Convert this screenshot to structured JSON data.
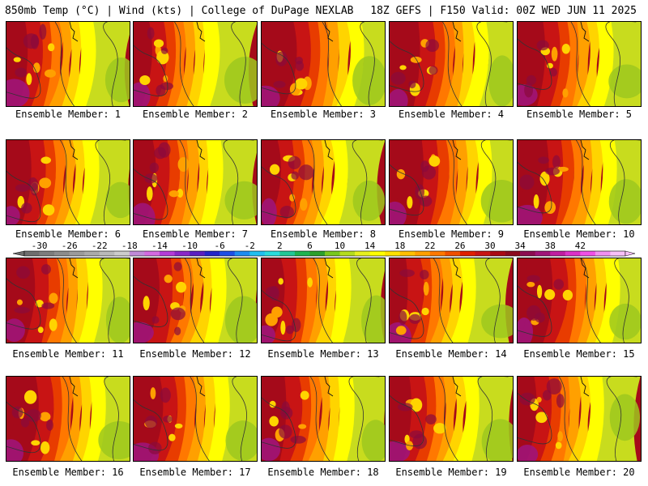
{
  "header": {
    "left": "850mb Temp (°C) | Wind (kts) | College of DuPage NEXLAB",
    "right": "18Z GEFS | F150 Valid: 00Z WED JUN 11 2025"
  },
  "members": [
    "Ensemble Member: 1",
    "Ensemble Member: 2",
    "Ensemble Member: 3",
    "Ensemble Member: 4",
    "Ensemble Member: 5",
    "Ensemble Member: 6",
    "Ensemble Member: 7",
    "Ensemble Member: 8",
    "Ensemble Member: 9",
    "Ensemble Member: 10",
    "Ensemble Member: 11",
    "Ensemble Member: 12",
    "Ensemble Member: 13",
    "Ensemble Member: 14",
    "Ensemble Member: 15",
    "Ensemble Member: 16",
    "Ensemble Member: 17",
    "Ensemble Member: 18",
    "Ensemble Member: 19",
    "Ensemble Member: 20"
  ],
  "colorbar": {
    "labels": [
      "-30",
      "-26",
      "-22",
      "-18",
      "-14",
      "-10",
      "-6",
      "-2",
      "2",
      "6",
      "10",
      "14",
      "18",
      "22",
      "26",
      "30",
      "34",
      "38",
      "42"
    ],
    "colors": [
      "#6e6e6e",
      "#7d7d7d",
      "#8c8c8c",
      "#9b9b9b",
      "#aaaaaa",
      "#b9b9b9",
      "#cccccc",
      "#c08ad8",
      "#d46ae0",
      "#b43cd8",
      "#8a28c8",
      "#5a1ec0",
      "#2424c8",
      "#1e4ee6",
      "#1e8cf0",
      "#20c0f0",
      "#28dcdc",
      "#22c896",
      "#1eb450",
      "#2ca02c",
      "#78c81e",
      "#b4dc1e",
      "#e6f01e",
      "#ffff00",
      "#ffe000",
      "#ffc000",
      "#ffa000",
      "#ff7800",
      "#f05000",
      "#e02000",
      "#c81414",
      "#aa0a14",
      "#8c0a1e",
      "#8c0c50",
      "#a01478",
      "#c01ea0",
      "#dc32c8",
      "#f050e6",
      "#f090f0",
      "#f8c0f8"
    ]
  },
  "field_colors": [
    "#9ec81e",
    "#c8dc1e",
    "#ffff00",
    "#ffd400",
    "#ffa000",
    "#ff7800",
    "#e83c00",
    "#c81414",
    "#a50a1a",
    "#8a0a3c",
    "#a01478"
  ]
}
